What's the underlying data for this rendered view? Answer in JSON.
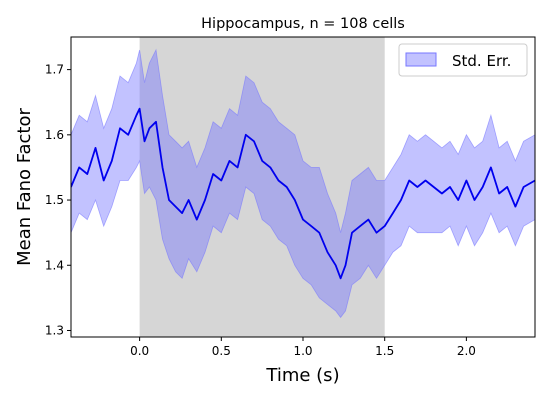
{
  "chart_data": {
    "type": "line",
    "title": "Hippocampus, n = 108 cells",
    "xlabel": "Time (s)",
    "ylabel": "Mean Fano Factor",
    "xlim": [
      -0.42,
      2.42
    ],
    "ylim": [
      1.29,
      1.75
    ],
    "x_ticks": [
      0.0,
      0.5,
      1.0,
      1.5,
      2.0
    ],
    "x_tick_labels": [
      "0.0",
      "0.5",
      "1.0",
      "1.5",
      "2.0"
    ],
    "y_ticks": [
      1.3,
      1.4,
      1.5,
      1.6,
      1.7
    ],
    "y_tick_labels": [
      "1.3",
      "1.4",
      "1.5",
      "1.6",
      "1.7"
    ],
    "shaded_interval": {
      "x_start": 0.0,
      "x_end": 1.5,
      "color": "#d6d6d6"
    },
    "legend": {
      "position": "top-right",
      "entries": [
        "Std. Err."
      ]
    },
    "series": [
      {
        "role": "mean",
        "color": "#0000ee",
        "x": [
          -0.42,
          -0.37,
          -0.32,
          -0.27,
          -0.22,
          -0.17,
          -0.12,
          -0.07,
          -0.02,
          0.0,
          0.03,
          0.06,
          0.1,
          0.14,
          0.18,
          0.22,
          0.26,
          0.3,
          0.35,
          0.4,
          0.45,
          0.5,
          0.55,
          0.6,
          0.65,
          0.7,
          0.75,
          0.8,
          0.85,
          0.9,
          0.95,
          1.0,
          1.05,
          1.1,
          1.15,
          1.2,
          1.23,
          1.26,
          1.3,
          1.35,
          1.4,
          1.45,
          1.5,
          1.55,
          1.6,
          1.65,
          1.7,
          1.75,
          1.8,
          1.85,
          1.9,
          1.95,
          2.0,
          2.05,
          2.1,
          2.15,
          2.2,
          2.25,
          2.3,
          2.35,
          2.42
        ],
        "y": [
          1.52,
          1.55,
          1.54,
          1.58,
          1.53,
          1.56,
          1.61,
          1.6,
          1.63,
          1.64,
          1.59,
          1.61,
          1.62,
          1.55,
          1.5,
          1.49,
          1.48,
          1.5,
          1.47,
          1.5,
          1.54,
          1.53,
          1.56,
          1.55,
          1.6,
          1.59,
          1.56,
          1.55,
          1.53,
          1.52,
          1.5,
          1.47,
          1.46,
          1.45,
          1.42,
          1.4,
          1.38,
          1.4,
          1.45,
          1.46,
          1.47,
          1.45,
          1.46,
          1.48,
          1.5,
          1.53,
          1.52,
          1.53,
          1.52,
          1.51,
          1.52,
          1.5,
          1.53,
          1.5,
          1.52,
          1.55,
          1.51,
          1.52,
          1.49,
          1.52,
          1.53
        ]
      },
      {
        "role": "std_err_band",
        "name": "Std. Err.",
        "color": "#7777ff",
        "x": [
          -0.42,
          -0.37,
          -0.32,
          -0.27,
          -0.22,
          -0.17,
          -0.12,
          -0.07,
          -0.02,
          0.0,
          0.03,
          0.06,
          0.1,
          0.14,
          0.18,
          0.22,
          0.26,
          0.3,
          0.35,
          0.4,
          0.45,
          0.5,
          0.55,
          0.6,
          0.65,
          0.7,
          0.75,
          0.8,
          0.85,
          0.9,
          0.95,
          1.0,
          1.05,
          1.1,
          1.15,
          1.2,
          1.23,
          1.26,
          1.3,
          1.35,
          1.4,
          1.45,
          1.5,
          1.55,
          1.6,
          1.65,
          1.7,
          1.75,
          1.8,
          1.85,
          1.9,
          1.95,
          2.0,
          2.05,
          2.1,
          2.15,
          2.2,
          2.25,
          2.3,
          2.35,
          2.42
        ],
        "lower": [
          1.45,
          1.48,
          1.47,
          1.5,
          1.46,
          1.49,
          1.53,
          1.53,
          1.55,
          1.56,
          1.51,
          1.52,
          1.5,
          1.44,
          1.41,
          1.39,
          1.38,
          1.41,
          1.39,
          1.42,
          1.46,
          1.45,
          1.48,
          1.47,
          1.52,
          1.51,
          1.47,
          1.46,
          1.44,
          1.43,
          1.4,
          1.38,
          1.37,
          1.35,
          1.34,
          1.33,
          1.32,
          1.33,
          1.37,
          1.38,
          1.4,
          1.38,
          1.4,
          1.42,
          1.43,
          1.46,
          1.45,
          1.45,
          1.45,
          1.45,
          1.46,
          1.43,
          1.46,
          1.43,
          1.45,
          1.48,
          1.45,
          1.46,
          1.43,
          1.46,
          1.47
        ],
        "upper": [
          1.6,
          1.63,
          1.62,
          1.66,
          1.61,
          1.64,
          1.69,
          1.68,
          1.71,
          1.73,
          1.68,
          1.71,
          1.73,
          1.66,
          1.6,
          1.59,
          1.58,
          1.59,
          1.55,
          1.58,
          1.62,
          1.61,
          1.64,
          1.63,
          1.69,
          1.68,
          1.65,
          1.64,
          1.62,
          1.61,
          1.6,
          1.56,
          1.55,
          1.55,
          1.51,
          1.48,
          1.45,
          1.48,
          1.53,
          1.54,
          1.55,
          1.53,
          1.53,
          1.55,
          1.57,
          1.6,
          1.59,
          1.6,
          1.59,
          1.58,
          1.59,
          1.57,
          1.6,
          1.58,
          1.59,
          1.63,
          1.58,
          1.59,
          1.56,
          1.59,
          1.6
        ]
      }
    ]
  }
}
